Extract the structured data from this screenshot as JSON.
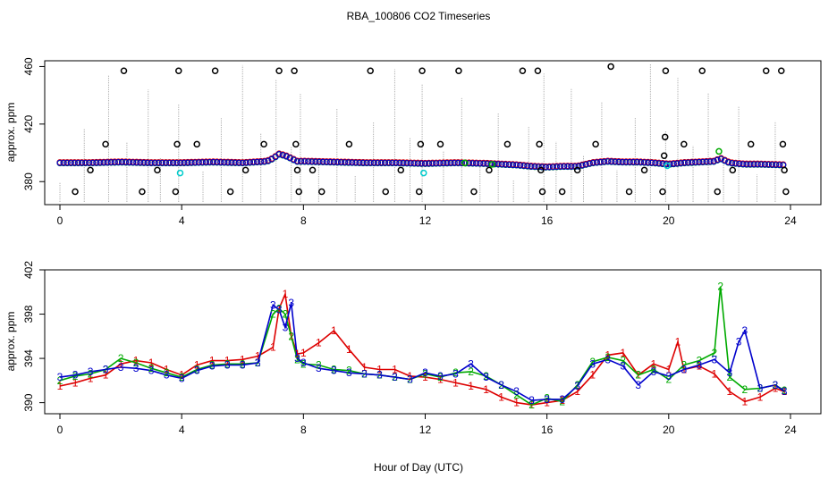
{
  "figure": {
    "title": "RBA_100806  CO2 Timeseries",
    "xlabel": "Hour of Day (UTC)"
  },
  "colors": {
    "black_series": "#000000",
    "red_series": "#dd0000",
    "green_series": "#00aa00",
    "blue_series": "#0000cc",
    "cyan_series": "#00cccc",
    "gray_lines": "#999999"
  },
  "chart_data": [
    {
      "type": "scatter",
      "panel": "top",
      "ylabel": "approx. ppm",
      "xlim": [
        -0.5,
        25
      ],
      "ylim": [
        364,
        464
      ],
      "xticks": [
        0,
        4,
        8,
        12,
        16,
        20,
        24
      ],
      "yticks": [
        380,
        420,
        460
      ],
      "series": [
        {
          "name": "black_raw_outliers",
          "color": "black",
          "points": [
            [
              0.5,
              373
            ],
            [
              1.0,
              388
            ],
            [
              1.5,
              406
            ],
            [
              2.1,
              457
            ],
            [
              2.7,
              373
            ],
            [
              3.2,
              388
            ],
            [
              3.8,
              373
            ],
            [
              3.85,
              406
            ],
            [
              3.9,
              457
            ],
            [
              4.5,
              406
            ],
            [
              5.1,
              457
            ],
            [
              5.6,
              373
            ],
            [
              6.1,
              388
            ],
            [
              6.7,
              406
            ],
            [
              7.2,
              457
            ],
            [
              7.7,
              457
            ],
            [
              7.75,
              406
            ],
            [
              7.8,
              388
            ],
            [
              7.85,
              373
            ],
            [
              8.3,
              388
            ],
            [
              8.6,
              373
            ],
            [
              9.5,
              406
            ],
            [
              10.2,
              457
            ],
            [
              10.7,
              373
            ],
            [
              11.2,
              388
            ],
            [
              11.8,
              373
            ],
            [
              11.85,
              406
            ],
            [
              11.9,
              457
            ],
            [
              12.5,
              406
            ],
            [
              13.1,
              457
            ],
            [
              13.6,
              373
            ],
            [
              14.1,
              388
            ],
            [
              14.7,
              406
            ],
            [
              15.2,
              457
            ],
            [
              15.7,
              457
            ],
            [
              15.75,
              406
            ],
            [
              15.8,
              388
            ],
            [
              15.85,
              373
            ],
            [
              16.5,
              373
            ],
            [
              17.0,
              388
            ],
            [
              17.6,
              406
            ],
            [
              18.1,
              460
            ],
            [
              18.7,
              373
            ],
            [
              19.2,
              388
            ],
            [
              19.8,
              373
            ],
            [
              19.85,
              398
            ],
            [
              19.88,
              411
            ],
            [
              19.9,
              457
            ],
            [
              20.5,
              406
            ],
            [
              21.1,
              457
            ],
            [
              21.6,
              373
            ],
            [
              22.1,
              388
            ],
            [
              22.7,
              406
            ],
            [
              23.2,
              457
            ],
            [
              23.7,
              457
            ],
            [
              23.75,
              406
            ],
            [
              23.8,
              388
            ],
            [
              23.85,
              373
            ]
          ]
        },
        {
          "name": "cyan_low_points",
          "color": "cyan",
          "points": [
            [
              3.95,
              386
            ],
            [
              11.95,
              386
            ],
            [
              19.95,
              391
            ]
          ]
        },
        {
          "name": "green_extra",
          "color": "green",
          "points": [
            [
              21.65,
              401
            ],
            [
              13.3,
              393
            ],
            [
              14.2,
              392
            ]
          ]
        }
      ],
      "baseline_profile": {
        "x": [
          0,
          1,
          2,
          3,
          4,
          5,
          6,
          6.8,
          7.0,
          7.2,
          7.4,
          7.6,
          7.8,
          8,
          9,
          10,
          11,
          12,
          13,
          14,
          15,
          15.5,
          16,
          16.5,
          17,
          17.5,
          18,
          18.5,
          19,
          19.5,
          20,
          20.5,
          21,
          21.5,
          21.7,
          22,
          22.5,
          23,
          23.8
        ],
        "y": [
          393,
          393,
          393.5,
          393,
          393,
          393.5,
          393,
          394,
          396,
          399,
          398,
          396,
          394,
          394,
          393.5,
          393,
          393,
          392.5,
          393,
          392.5,
          391.5,
          390.5,
          390,
          390.5,
          390.5,
          393,
          394,
          393.5,
          393.5,
          393,
          392,
          393,
          393.5,
          394,
          396,
          393,
          392,
          392,
          391.5
        ]
      },
      "vertical_spikes": {
        "color": "gray",
        "x": [
          0.0,
          0.8,
          1.6,
          2.2,
          2.9,
          3.3,
          3.9,
          4.7,
          5.3,
          6.0,
          6.6,
          7.1,
          7.6,
          7.9,
          8.5,
          9.1,
          9.7,
          10.3,
          11.0,
          11.5,
          11.9,
          12.6,
          13.2,
          13.8,
          14.4,
          14.9,
          15.4,
          15.9,
          16.3,
          16.8,
          17.2,
          17.8,
          18.3,
          18.9,
          19.4,
          19.9,
          20.3,
          20.8,
          21.3,
          21.8,
          22.3,
          22.9,
          23.5
        ]
      }
    },
    {
      "type": "line",
      "panel": "bottom",
      "ylabel": "approx. ppm",
      "xlim": [
        -0.5,
        25
      ],
      "ylim": [
        389,
        402
      ],
      "xticks": [
        0,
        4,
        8,
        12,
        16,
        20,
        24
      ],
      "yticks": [
        390,
        394,
        398,
        402
      ],
      "series": [
        {
          "name": "1",
          "color": "red",
          "x": [
            0,
            0.5,
            1,
            1.5,
            2,
            2.5,
            3,
            3.5,
            4,
            4.5,
            5,
            5.5,
            6,
            6.5,
            7,
            7.2,
            7.4,
            7.6,
            7.8,
            8,
            8.5,
            9,
            9.5,
            10,
            10.5,
            11,
            11.5,
            12,
            12.5,
            13,
            13.5,
            14,
            14.5,
            15,
            15.5,
            16,
            16.5,
            17,
            17.5,
            18,
            18.5,
            19,
            19.5,
            20,
            20.3,
            20.5,
            21,
            21.5,
            22,
            22.5,
            23,
            23.5,
            23.8
          ],
          "y": [
            391.5,
            391.8,
            392.2,
            392.5,
            393.5,
            393.8,
            393.6,
            393,
            392.5,
            393.4,
            393.8,
            393.8,
            393.9,
            394.2,
            395,
            398.5,
            399.8,
            396,
            394.4,
            394.5,
            395.4,
            396.5,
            394.8,
            393.2,
            393,
            393,
            392.4,
            392.3,
            392.1,
            391.8,
            391.5,
            391.2,
            390.5,
            390,
            389.8,
            390,
            390.2,
            391,
            392.5,
            394.3,
            394.5,
            392.5,
            393.5,
            393,
            395.5,
            393,
            393.3,
            392.6,
            391,
            390.1,
            390.5,
            391.3,
            391
          ]
        },
        {
          "name": "2",
          "color": "green",
          "x": [
            0,
            0.5,
            1,
            1.5,
            2,
            2.5,
            3,
            3.5,
            4,
            4.5,
            5,
            5.5,
            6,
            6.5,
            7,
            7.2,
            7.4,
            7.6,
            7.8,
            8,
            8.5,
            9,
            9.5,
            10,
            10.5,
            11,
            11.5,
            12,
            12.5,
            13,
            13.5,
            14,
            14.5,
            15,
            15.5,
            16,
            16.5,
            17,
            17.5,
            18,
            18.5,
            19,
            19.5,
            20,
            20.5,
            21,
            21.5,
            21.7,
            22,
            22.5,
            23,
            23.5,
            23.8
          ],
          "y": [
            392,
            392.4,
            392.6,
            393,
            394,
            393.6,
            393.1,
            392.7,
            392.3,
            393,
            393.4,
            393.5,
            393.5,
            393.6,
            398,
            398.5,
            398,
            396,
            393.9,
            393.5,
            393.4,
            393,
            392.9,
            392.6,
            392.5,
            392.3,
            392.1,
            392.6,
            392.3,
            392.7,
            392.8,
            392.4,
            391.6,
            390.7,
            389.8,
            390.4,
            390.1,
            391.6,
            393.7,
            394.1,
            393.8,
            392.5,
            393,
            392.1,
            393.4,
            393.8,
            394.5,
            400.5,
            392.3,
            391.2,
            391.3,
            391.6,
            391.1
          ]
        },
        {
          "name": "3",
          "color": "blue",
          "x": [
            0,
            0.5,
            1,
            1.5,
            2,
            2.5,
            3,
            3.5,
            4,
            4.5,
            5,
            5.5,
            6,
            6.5,
            7,
            7.2,
            7.4,
            7.6,
            7.8,
            8,
            8.5,
            9,
            9.5,
            10,
            10.5,
            11,
            11.5,
            12,
            12.5,
            13,
            13.5,
            14,
            14.5,
            15,
            15.5,
            16,
            16.5,
            17,
            17.5,
            18,
            18.5,
            19,
            19.5,
            20,
            20.5,
            21,
            21.5,
            22,
            22.3,
            22.5,
            23,
            23.5,
            23.8
          ],
          "y": [
            392.3,
            392.5,
            392.8,
            393,
            393.2,
            393.1,
            392.9,
            392.5,
            392.2,
            392.9,
            393.3,
            393.4,
            393.4,
            393.6,
            398.8,
            398.4,
            396.8,
            399,
            394,
            393.6,
            393.1,
            392.9,
            392.7,
            392.6,
            392.5,
            392.3,
            392.1,
            392.7,
            392.4,
            392.6,
            393.5,
            392.3,
            391.6,
            391,
            390.2,
            390.3,
            390.3,
            391.5,
            393.5,
            393.9,
            393.3,
            391.6,
            392.8,
            392.4,
            393,
            393.4,
            393.9,
            392.7,
            395.5,
            396.5,
            391.3,
            391.6,
            391
          ]
        }
      ]
    }
  ]
}
